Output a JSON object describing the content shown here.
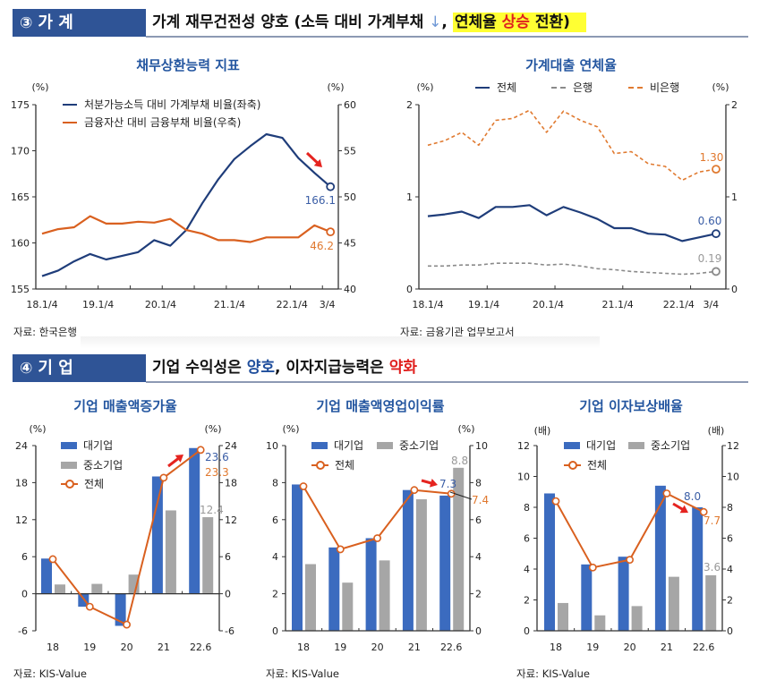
{
  "sections": [
    {
      "number": "③",
      "label": "가 계",
      "headline": [
        "가계 재무건전성 양호 (소득 대비 가계부채 ",
        "↓",
        ", ",
        "연체율 ",
        "상승",
        " 전환)"
      ]
    },
    {
      "number": "④",
      "label": "기 업",
      "headline": [
        "기업 수익성은 ",
        "양호",
        ", 이자지급능력은 ",
        "약화"
      ]
    }
  ],
  "colors": {
    "section_badge": "#2f5496",
    "highlight": "#ffff33",
    "emphasis_red": "#e0201e",
    "emphasis_blue": "#1f4e9c",
    "trend_arrow": "#e52420"
  },
  "chart_data": [
    {
      "type": "line",
      "title": "채무상환능력 지표",
      "ylabel_left": "(%)",
      "ylabel_right": "(%)",
      "ylim_left": [
        155,
        175
      ],
      "ylim_right": [
        40,
        60
      ],
      "yticks_left": [
        "155",
        "160",
        "165",
        "170",
        "175"
      ],
      "yticks_right": [
        "40",
        "45",
        "50",
        "55",
        "60"
      ],
      "xtick_labels": [
        "18.1/4",
        "19.1/4",
        "20.1/4",
        "21.1/4",
        "22.1/4",
        "3/4"
      ],
      "xtick_index": [
        0,
        3.5,
        7.4,
        11.7,
        15.6,
        17.8
      ],
      "series": [
        {
          "name": "처분가능소득 대비 가계부채 비율(좌축)",
          "axis": "left",
          "style": "solid",
          "color": "#1f3d7a",
          "values": [
            156.4,
            157.0,
            158.0,
            158.8,
            158.2,
            158.6,
            159.0,
            160.3,
            159.7,
            161.4,
            164.3,
            166.9,
            169.1,
            170.5,
            171.8,
            171.4,
            169.2,
            167.6,
            166.1
          ]
        },
        {
          "name": "금융자산 대비 금융부채 비율(우축)",
          "axis": "right",
          "style": "solid",
          "color": "#d9601f",
          "values": [
            46.0,
            46.5,
            46.7,
            47.9,
            47.1,
            47.1,
            47.3,
            47.2,
            47.6,
            46.4,
            46.0,
            45.3,
            45.3,
            45.1,
            45.6,
            45.6,
            45.6,
            46.9,
            46.2
          ]
        }
      ],
      "annotations": [
        {
          "text": "166.1",
          "series": 0
        },
        {
          "text": "46.2",
          "series": 1
        }
      ],
      "grid": false,
      "legend": "top-left",
      "source": "자료: 한국은행"
    },
    {
      "type": "line",
      "title": "가계대출 연체율",
      "ylabel_left": "(%)",
      "ylabel_right": "(%)",
      "ylim_left": [
        0,
        2
      ],
      "ylim_right": [
        0,
        2
      ],
      "yticks_left": [
        "0",
        "1",
        "2"
      ],
      "yticks_right": [
        "0",
        "1",
        "2"
      ],
      "xtick_labels": [
        "18.1/4",
        "19.1/4",
        "20.1/4",
        "21.1/4",
        "22.1/4",
        "3/4"
      ],
      "xtick_index": [
        0,
        3.3,
        7.1,
        11.2,
        14.8,
        16.7
      ],
      "series": [
        {
          "name": "전체",
          "axis": "left",
          "style": "solid",
          "color": "#1f3d7a",
          "values": [
            0.79,
            0.81,
            0.84,
            0.77,
            0.89,
            0.89,
            0.91,
            0.8,
            0.89,
            0.83,
            0.76,
            0.66,
            0.66,
            0.6,
            0.59,
            0.52,
            0.56,
            0.6
          ]
        },
        {
          "name": "은행",
          "axis": "left",
          "style": "dashed",
          "color": "#8a8a8a",
          "values": [
            0.25,
            0.25,
            0.26,
            0.26,
            0.28,
            0.28,
            0.28,
            0.26,
            0.27,
            0.25,
            0.22,
            0.21,
            0.19,
            0.18,
            0.17,
            0.16,
            0.17,
            0.19
          ]
        },
        {
          "name": "비은행",
          "axis": "left",
          "style": "dashed",
          "color": "#e07a30",
          "values": [
            1.56,
            1.61,
            1.7,
            1.56,
            1.83,
            1.85,
            1.94,
            1.7,
            1.93,
            1.83,
            1.76,
            1.47,
            1.49,
            1.36,
            1.33,
            1.18,
            1.27,
            1.3
          ]
        }
      ],
      "annotations": [
        {
          "text": "1.30",
          "series": 2
        },
        {
          "text": "0.60",
          "series": 0
        },
        {
          "text": "0.19",
          "series": 1
        }
      ],
      "grid": false,
      "legend": "top",
      "source": "자료: 금융기관 업무보고서"
    },
    {
      "type": "bar",
      "title": "기업 매출액증가율",
      "ylabel_left": "(%)",
      "ylabel_right": "(%)",
      "ylim": [
        -6,
        24
      ],
      "yticks": [
        "-6",
        "0",
        "6",
        "12",
        "18",
        "24"
      ],
      "categories": [
        "18",
        "19",
        "20",
        "21",
        "22.6"
      ],
      "series": [
        {
          "name": "대기업",
          "kind": "bar",
          "color": "#3b6bbf",
          "values": [
            5.7,
            -2.1,
            -5.2,
            19.0,
            23.6
          ]
        },
        {
          "name": "중소기업",
          "kind": "bar",
          "color": "#a6a6a6",
          "values": [
            1.5,
            1.6,
            3.1,
            13.5,
            12.4
          ]
        },
        {
          "name": "전체",
          "kind": "line",
          "color": "#d9601f",
          "values": [
            5.6,
            -2.1,
            -5.0,
            18.8,
            23.3
          ]
        }
      ],
      "annotations": [
        {
          "text": "23.6",
          "series": 0
        },
        {
          "text": "23.3",
          "series": 2
        },
        {
          "text": "12.4",
          "series": 1
        }
      ],
      "grid": false,
      "legend": "top-left",
      "source": "자료: KIS-Value"
    },
    {
      "type": "bar",
      "title": "기업 매출액영업이익률",
      "ylabel_left": "(%)",
      "ylabel_right": "(%)",
      "ylim": [
        0,
        10
      ],
      "yticks": [
        "0",
        "2",
        "4",
        "6",
        "8",
        "10"
      ],
      "categories": [
        "18",
        "19",
        "20",
        "21",
        "22.6"
      ],
      "series": [
        {
          "name": "대기업",
          "kind": "bar",
          "color": "#3b6bbf",
          "values": [
            7.9,
            4.5,
            5.0,
            7.6,
            7.3
          ]
        },
        {
          "name": "중소기업",
          "kind": "bar",
          "color": "#a6a6a6",
          "values": [
            3.6,
            2.6,
            3.8,
            7.1,
            8.8
          ]
        },
        {
          "name": "전체",
          "kind": "line",
          "color": "#d9601f",
          "values": [
            7.8,
            4.4,
            5.0,
            7.6,
            7.4
          ]
        }
      ],
      "annotations": [
        {
          "text": "7.3",
          "series": 0
        },
        {
          "text": "8.8",
          "series": 1
        },
        {
          "text": "7.4",
          "series": 2
        }
      ],
      "grid": false,
      "legend": "top-left",
      "source": "자료: KIS-Value"
    },
    {
      "type": "bar",
      "title": "기업 이자보상배율",
      "ylabel_left": "(배)",
      "ylabel_right": "(배)",
      "ylim": [
        0,
        12
      ],
      "yticks": [
        "0",
        "2",
        "4",
        "6",
        "8",
        "10",
        "12"
      ],
      "categories": [
        "18",
        "19",
        "20",
        "21",
        "22.6"
      ],
      "series": [
        {
          "name": "대기업",
          "kind": "bar",
          "color": "#3b6bbf",
          "values": [
            8.9,
            4.3,
            4.8,
            9.4,
            8.0
          ]
        },
        {
          "name": "중소기업",
          "kind": "bar",
          "color": "#a6a6a6",
          "values": [
            1.8,
            1.0,
            1.6,
            3.5,
            3.6
          ]
        },
        {
          "name": "전체",
          "kind": "line",
          "color": "#d9601f",
          "values": [
            8.4,
            4.1,
            4.6,
            8.9,
            7.7
          ]
        }
      ],
      "annotations": [
        {
          "text": "8.0",
          "series": 0
        },
        {
          "text": "7.7",
          "series": 2
        },
        {
          "text": "3.6",
          "series": 1
        }
      ],
      "grid": false,
      "legend": "top-left",
      "source": "자료: KIS-Value"
    }
  ]
}
